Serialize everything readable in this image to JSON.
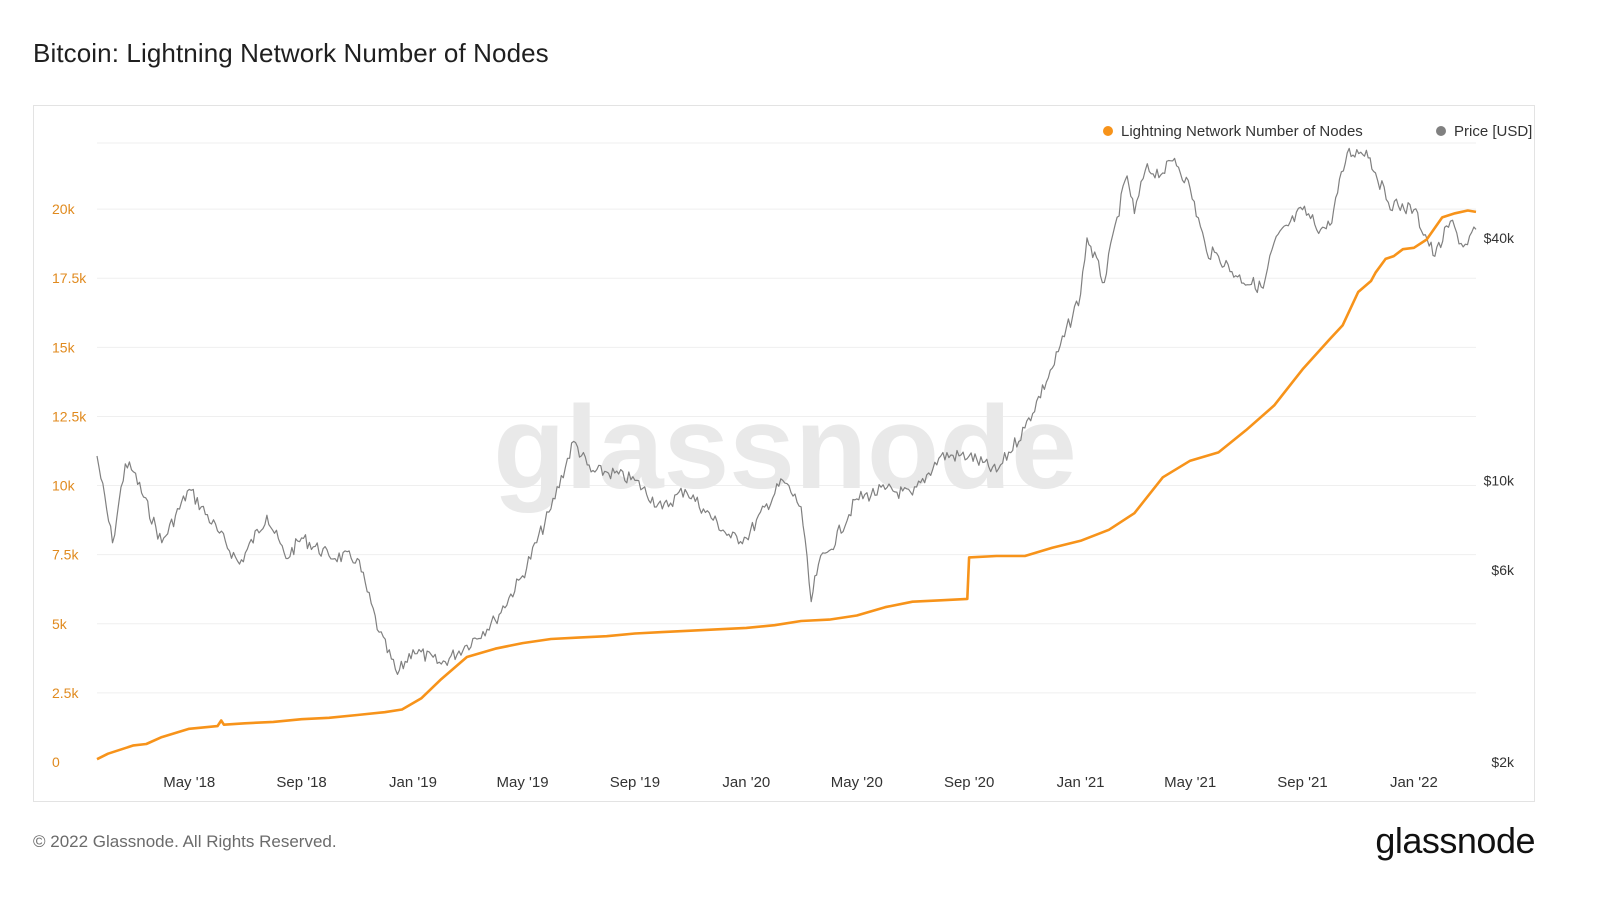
{
  "title": "Bitcoin: Lightning Network Number of Nodes",
  "footer": {
    "copyright": "© 2022 Glassnode. All Rights Reserved.",
    "logo": "glassnode"
  },
  "watermark": "glassnode",
  "colors": {
    "nodes": "#f7931a",
    "price": "#808080",
    "left_axis": "#e08a1e",
    "grid": "#efefef"
  },
  "chart_data": {
    "type": "line",
    "title": "Bitcoin: Lightning Network Number of Nodes",
    "legend": {
      "placement": "top-right",
      "entries": [
        "Lightning Network Number of Nodes",
        "Price [USD]"
      ]
    },
    "x_ticks": [
      "May '18",
      "Sep '18",
      "Jan '19",
      "May '19",
      "Sep '19",
      "Jan '20",
      "May '20",
      "Sep '20",
      "Jan '21",
      "May '21",
      "Sep '21",
      "Jan '22"
    ],
    "x_tick_dates": [
      "2018-05-01",
      "2018-09-01",
      "2019-01-01",
      "2019-05-01",
      "2019-09-01",
      "2020-01-01",
      "2020-05-01",
      "2020-09-01",
      "2021-01-01",
      "2021-05-01",
      "2021-09-01",
      "2022-01-01"
    ],
    "xlim": [
      "2018-01-20",
      "2022-03-10"
    ],
    "left_axis": {
      "ticks": [
        "0",
        "2.5k",
        "5k",
        "7.5k",
        "10k",
        "12.5k",
        "15k",
        "17.5k",
        "20k"
      ],
      "values": [
        0,
        2500,
        5000,
        7500,
        10000,
        12500,
        15000,
        17500,
        20000
      ],
      "ylim": [
        0,
        22500
      ]
    },
    "right_axis": {
      "scale": "log",
      "ticks": [
        "$2k",
        "$6k",
        "$10k",
        "$40k"
      ],
      "values": [
        2000,
        6000,
        10000,
        40000
      ],
      "ylim": [
        2000,
        70000
      ]
    },
    "grid": true,
    "series": [
      {
        "name": "Lightning Network Number of Nodes",
        "axis": "left",
        "x": [
          "2018-01-20",
          "2018-02-01",
          "2018-03-01",
          "2018-03-15",
          "2018-04-01",
          "2018-05-01",
          "2018-06-01",
          "2018-06-05",
          "2018-06-08",
          "2018-07-01",
          "2018-08-01",
          "2018-09-01",
          "2018-10-01",
          "2018-11-01",
          "2018-12-01",
          "2018-12-20",
          "2019-01-10",
          "2019-02-01",
          "2019-03-01",
          "2019-04-01",
          "2019-05-01",
          "2019-06-01",
          "2019-07-01",
          "2019-08-01",
          "2019-09-01",
          "2019-10-01",
          "2019-11-01",
          "2019-12-01",
          "2020-01-01",
          "2020-02-01",
          "2020-03-01",
          "2020-04-01",
          "2020-05-01",
          "2020-06-01",
          "2020-07-01",
          "2020-08-01",
          "2020-08-30",
          "2020-09-01",
          "2020-10-01",
          "2020-11-01",
          "2020-12-01",
          "2021-01-01",
          "2021-02-01",
          "2021-03-01",
          "2021-04-01",
          "2021-05-01",
          "2021-06-01",
          "2021-07-01",
          "2021-08-01",
          "2021-09-01",
          "2021-10-01",
          "2021-10-15",
          "2021-11-01",
          "2021-11-15",
          "2021-11-20",
          "2021-12-01",
          "2021-12-10",
          "2021-12-20",
          "2022-01-01",
          "2022-01-15",
          "2022-02-01",
          "2022-02-15",
          "2022-03-01",
          "2022-03-10"
        ],
        "y": [
          100,
          300,
          600,
          650,
          900,
          1200,
          1300,
          1500,
          1350,
          1400,
          1450,
          1550,
          1600,
          1700,
          1800,
          1900,
          2300,
          3000,
          3800,
          4100,
          4300,
          4450,
          4500,
          4550,
          4650,
          4700,
          4750,
          4800,
          4850,
          4950,
          5100,
          5150,
          5300,
          5600,
          5800,
          5850,
          5900,
          7400,
          7450,
          7450,
          7750,
          8000,
          8400,
          9000,
          10300,
          10900,
          11200,
          12000,
          12900,
          14200,
          15300,
          15800,
          17000,
          17400,
          17700,
          18200,
          18300,
          18550,
          18600,
          18900,
          19700,
          19850,
          19950,
          19900
        ]
      },
      {
        "name": "Price [USD]",
        "axis": "right",
        "x": [
          "2018-01-20",
          "2018-02-06",
          "2018-02-20",
          "2018-03-01",
          "2018-04-01",
          "2018-05-01",
          "2018-06-01",
          "2018-06-25",
          "2018-07-25",
          "2018-08-15",
          "2018-09-01",
          "2018-10-01",
          "2018-11-01",
          "2018-11-25",
          "2018-12-15",
          "2019-01-01",
          "2019-02-01",
          "2019-03-01",
          "2019-04-01",
          "2019-05-01",
          "2019-06-01",
          "2019-06-26",
          "2019-07-15",
          "2019-08-01",
          "2019-09-01",
          "2019-10-01",
          "2019-10-26",
          "2019-11-15",
          "2019-12-15",
          "2020-01-01",
          "2020-02-10",
          "2020-03-01",
          "2020-03-12",
          "2020-03-20",
          "2020-04-01",
          "2020-05-01",
          "2020-06-01",
          "2020-07-01",
          "2020-08-01",
          "2020-09-01",
          "2020-10-01",
          "2020-11-01",
          "2020-12-01",
          "2021-01-01",
          "2021-01-08",
          "2021-01-27",
          "2021-02-10",
          "2021-02-21",
          "2021-03-01",
          "2021-03-13",
          "2021-04-01",
          "2021-04-14",
          "2021-05-01",
          "2021-05-19",
          "2021-06-01",
          "2021-06-22",
          "2021-07-20",
          "2021-08-01",
          "2021-09-01",
          "2021-09-21",
          "2021-10-01",
          "2021-10-20",
          "2021-11-10",
          "2021-11-20",
          "2021-12-04",
          "2021-12-15",
          "2022-01-01",
          "2022-01-24",
          "2022-02-10",
          "2022-02-24",
          "2022-03-10"
        ],
        "y": [
          11500,
          7000,
          11000,
          10500,
          7000,
          9500,
          7500,
          6200,
          8200,
          6400,
          7200,
          6500,
          6400,
          4200,
          3300,
          3800,
          3500,
          3900,
          4500,
          5800,
          8500,
          12500,
          10500,
          10500,
          10000,
          8500,
          9500,
          8500,
          7200,
          7200,
          10000,
          8600,
          5000,
          6200,
          6700,
          9000,
          9500,
          9200,
          11500,
          11500,
          10500,
          13500,
          19000,
          29000,
          40000,
          31000,
          45000,
          57000,
          46000,
          59000,
          58000,
          63000,
          53000,
          37000,
          36000,
          32000,
          30000,
          39000,
          47000,
          42000,
          43000,
          65000,
          66000,
          58000,
          49000,
          48000,
          47000,
          36000,
          44000,
          38000,
          42000
        ]
      }
    ]
  }
}
